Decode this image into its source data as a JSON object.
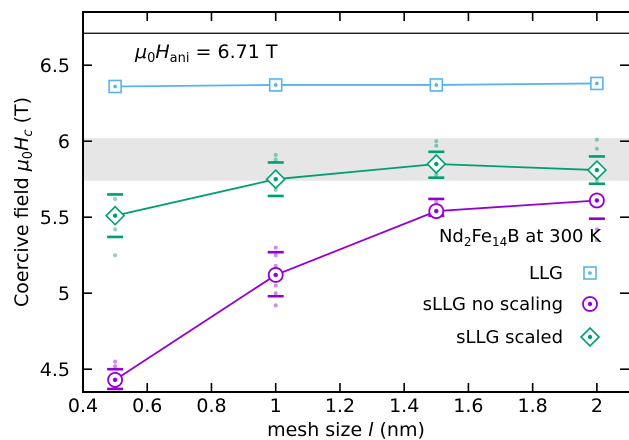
{
  "chart_data": {
    "type": "line",
    "title": "",
    "xlabel": "mesh size l (nm)",
    "ylabel": "Coercive field μ0Hc (T)",
    "xlim": [
      0.4,
      2.1
    ],
    "ylim": [
      4.35,
      6.85
    ],
    "xticks": [
      "0.4",
      "0.6",
      "0.8",
      "1",
      "1.2",
      "1.4",
      "1.6",
      "1.8",
      "2"
    ],
    "yticks": [
      "4.5",
      "5",
      "5.5",
      "6",
      "6.5"
    ],
    "legend_title": "Nd2Fe14B at 300 K",
    "legend_position": "right",
    "reference_line": {
      "y": 6.71,
      "label": "μ0Hani = 6.71 T"
    },
    "shaded_band": {
      "ymin": 5.74,
      "ymax": 6.02,
      "color": "#e6e6e6"
    },
    "series": [
      {
        "name": "LLG",
        "color": "#56b4e9",
        "marker": "square-dot",
        "x": [
          0.5,
          1.0,
          1.5,
          2.0
        ],
        "y": [
          6.36,
          6.37,
          6.37,
          6.38
        ]
      },
      {
        "name": "sLLG no scaling",
        "color": "#9400d3",
        "marker": "circle-dot",
        "x": [
          0.5,
          1.0,
          1.5,
          2.0
        ],
        "y": [
          4.43,
          5.12,
          5.54,
          5.61
        ],
        "err_low": [
          4.37,
          4.98,
          5.51,
          5.49
        ],
        "err_high": [
          4.5,
          5.27,
          5.62,
          5.72
        ],
        "samples": [
          [
            4.38,
            4.4,
            4.45,
            4.47,
            4.52,
            4.55
          ],
          [
            4.92,
            5.0,
            5.05,
            5.18,
            5.25,
            5.3
          ],
          [
            5.5,
            5.53,
            5.56,
            5.6
          ],
          [
            5.35,
            5.42,
            5.58,
            5.65
          ]
        ]
      },
      {
        "name": "sLLG scaled",
        "color": "#009e73",
        "marker": "diamond-dot",
        "x": [
          0.5,
          1.0,
          1.5,
          2.0
        ],
        "y": [
          5.51,
          5.75,
          5.85,
          5.81
        ],
        "err_low": [
          5.37,
          5.64,
          5.76,
          5.72
        ],
        "err_high": [
          5.65,
          5.86,
          5.93,
          5.9
        ],
        "samples": [
          [
            5.25,
            5.42,
            5.55,
            5.62
          ],
          [
            5.68,
            5.8,
            5.88,
            5.91
          ],
          [
            5.78,
            5.9,
            5.97,
            6.0
          ],
          [
            5.74,
            5.85,
            5.95,
            6.01
          ]
        ]
      }
    ]
  }
}
